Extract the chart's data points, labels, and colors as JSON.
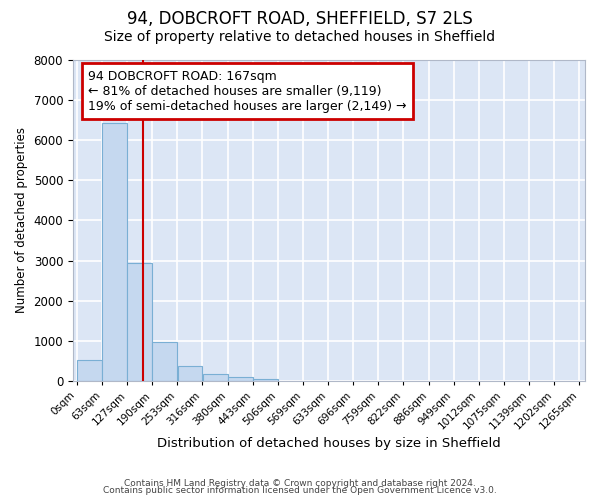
{
  "title1": "94, DOBCROFT ROAD, SHEFFIELD, S7 2LS",
  "title2": "Size of property relative to detached houses in Sheffield",
  "xlabel": "Distribution of detached houses by size in Sheffield",
  "ylabel": "Number of detached properties",
  "bar_values": [
    530,
    6430,
    2930,
    970,
    380,
    170,
    90,
    55,
    0,
    0,
    0,
    0,
    0,
    0,
    0,
    0,
    0,
    0,
    0,
    0
  ],
  "bar_edges": [
    0,
    63,
    127,
    190,
    253,
    316,
    380,
    443,
    506,
    569,
    633,
    696,
    759,
    822,
    886,
    949,
    1012,
    1075,
    1139,
    1202,
    1265
  ],
  "bar_color": "#c5d8ef",
  "bar_edge_color": "#7aafd4",
  "property_line_x": 167,
  "property_line_color": "#cc0000",
  "ylim": [
    0,
    8000
  ],
  "yticks": [
    0,
    1000,
    2000,
    3000,
    4000,
    5000,
    6000,
    7000,
    8000
  ],
  "annotation_text": "94 DOBCROFT ROAD: 167sqm\n← 81% of detached houses are smaller (9,119)\n19% of semi-detached houses are larger (2,149) →",
  "annotation_box_edgecolor": "#cc0000",
  "footer_text1": "Contains HM Land Registry data © Crown copyright and database right 2024.",
  "footer_text2": "Contains public sector information licensed under the Open Government Licence v3.0.",
  "plot_bg_color": "#dce6f5",
  "fig_bg_color": "#ffffff",
  "grid_color": "#ffffff",
  "title1_fontsize": 12,
  "title2_fontsize": 10,
  "annotation_fontsize": 9
}
